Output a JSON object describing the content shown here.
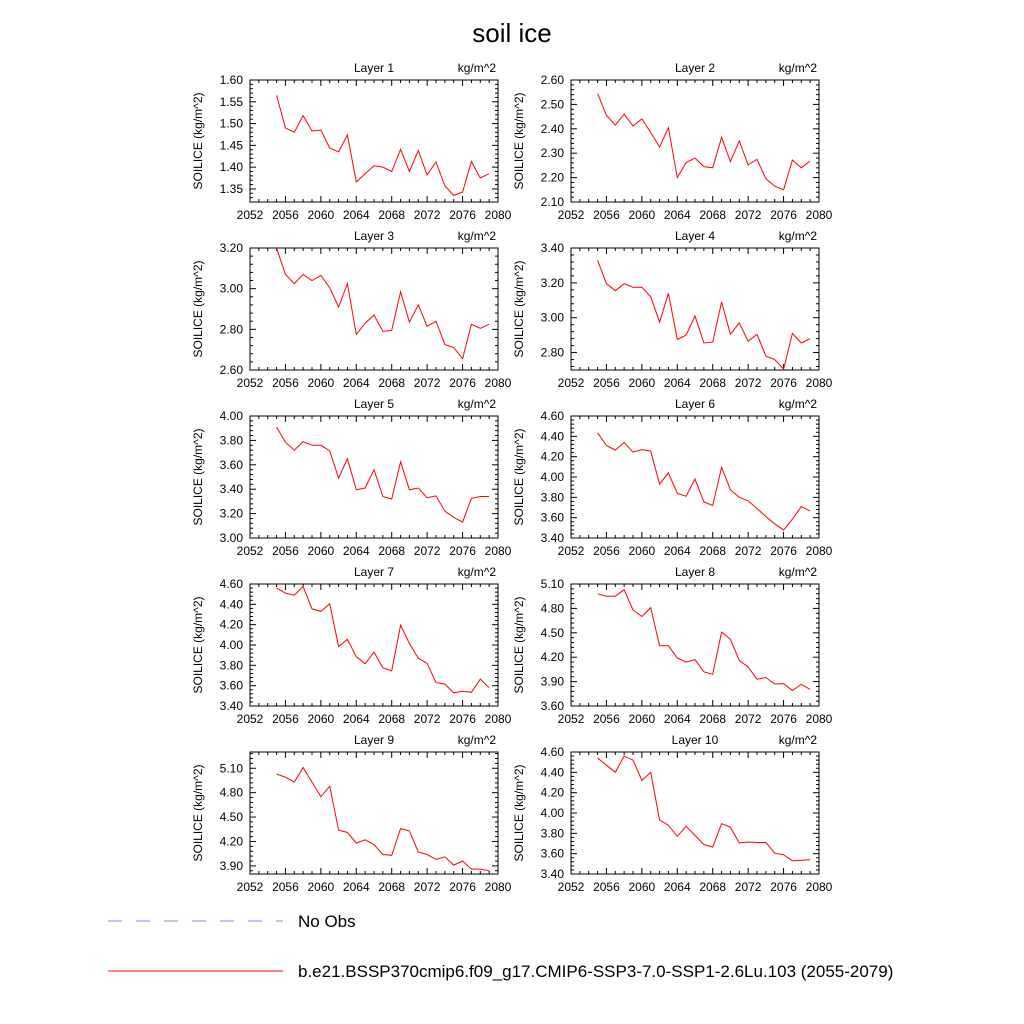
{
  "title": "soil ice",
  "legend": {
    "entries": [
      {
        "label": "No Obs",
        "color": "#8080ff",
        "dash": "dashed"
      },
      {
        "label": "b.e21.BSSP370cmip6.f09_g17.CMIP6-SSP3-7.0-SSP1-2.6Lu.103 (2055-2079)",
        "color": "#ff0000",
        "dash": "solid"
      }
    ]
  },
  "chart_data": [
    {
      "type": "line",
      "left_title": "Layer 1",
      "right_title": "kg/m^2",
      "ylabel": "SOILICE  (kg/m^2)",
      "xlim": [
        2052,
        2080
      ],
      "xticks": [
        2052,
        2056,
        2060,
        2064,
        2068,
        2072,
        2076,
        2080
      ],
      "ylim": [
        1.32,
        1.6
      ],
      "yticks": [
        1.35,
        1.4,
        1.45,
        1.5,
        1.55,
        1.6
      ],
      "ytick_decimals": 2,
      "series": [
        {
          "color": "#ff0000",
          "x": [
            2055,
            2056,
            2057,
            2058,
            2059,
            2060,
            2061,
            2062,
            2063,
            2064,
            2065,
            2066,
            2067,
            2068,
            2069,
            2070,
            2071,
            2072,
            2073,
            2074,
            2075,
            2076,
            2077,
            2078,
            2079
          ],
          "y": [
            1.565,
            1.49,
            1.48,
            1.518,
            1.483,
            1.485,
            1.444,
            1.435,
            1.474,
            1.366,
            1.385,
            1.403,
            1.4,
            1.39,
            1.441,
            1.39,
            1.438,
            1.382,
            1.412,
            1.357,
            1.335,
            1.343,
            1.413,
            1.375,
            1.385
          ]
        }
      ]
    },
    {
      "type": "line",
      "left_title": "Layer 2",
      "right_title": "kg/m^2",
      "ylabel": "SOILICE  (kg/m^2)",
      "xlim": [
        2052,
        2080
      ],
      "xticks": [
        2052,
        2056,
        2060,
        2064,
        2068,
        2072,
        2076,
        2080
      ],
      "ylim": [
        2.1,
        2.6
      ],
      "yticks": [
        2.1,
        2.2,
        2.3,
        2.4,
        2.5,
        2.6
      ],
      "ytick_decimals": 2,
      "series": [
        {
          "color": "#ff0000",
          "x": [
            2055,
            2056,
            2057,
            2058,
            2059,
            2060,
            2061,
            2062,
            2063,
            2064,
            2065,
            2066,
            2067,
            2068,
            2069,
            2070,
            2071,
            2072,
            2073,
            2074,
            2075,
            2076,
            2077,
            2078,
            2079
          ],
          "y": [
            2.545,
            2.455,
            2.415,
            2.46,
            2.412,
            2.44,
            2.385,
            2.325,
            2.405,
            2.2,
            2.262,
            2.28,
            2.245,
            2.24,
            2.365,
            2.265,
            2.35,
            2.252,
            2.275,
            2.195,
            2.165,
            2.15,
            2.272,
            2.24,
            2.268
          ]
        }
      ]
    },
    {
      "type": "line",
      "left_title": "Layer 3",
      "right_title": "kg/m^2",
      "ylabel": "SOILICE  (kg/m^2)",
      "xlim": [
        2052,
        2080
      ],
      "xticks": [
        2052,
        2056,
        2060,
        2064,
        2068,
        2072,
        2076,
        2080
      ],
      "ylim": [
        2.6,
        3.2
      ],
      "yticks": [
        2.6,
        2.8,
        3.0,
        3.2
      ],
      "ytick_decimals": 2,
      "series": [
        {
          "color": "#ff0000",
          "x": [
            2055,
            2056,
            2057,
            2058,
            2059,
            2060,
            2061,
            2062,
            2063,
            2064,
            2065,
            2066,
            2067,
            2068,
            2069,
            2070,
            2071,
            2072,
            2073,
            2074,
            2075,
            2076,
            2077,
            2078,
            2079
          ],
          "y": [
            3.2,
            3.07,
            3.025,
            3.07,
            3.04,
            3.065,
            3.005,
            2.91,
            3.025,
            2.775,
            2.83,
            2.87,
            2.79,
            2.795,
            2.985,
            2.835,
            2.92,
            2.815,
            2.84,
            2.725,
            2.71,
            2.655,
            2.825,
            2.805,
            2.825
          ]
        }
      ]
    },
    {
      "type": "line",
      "left_title": "Layer 4",
      "right_title": "kg/m^2",
      "ylabel": "SOILICE  (kg/m^2)",
      "xlim": [
        2052,
        2080
      ],
      "xticks": [
        2052,
        2056,
        2060,
        2064,
        2068,
        2072,
        2076,
        2080
      ],
      "ylim": [
        2.7,
        3.4
      ],
      "yticks": [
        2.8,
        3.0,
        3.2,
        3.4
      ],
      "ytick_decimals": 2,
      "series": [
        {
          "color": "#ff0000",
          "x": [
            2055,
            2056,
            2057,
            2058,
            2059,
            2060,
            2061,
            2062,
            2063,
            2064,
            2065,
            2066,
            2067,
            2068,
            2069,
            2070,
            2071,
            2072,
            2073,
            2074,
            2075,
            2076,
            2077,
            2078,
            2079
          ],
          "y": [
            3.33,
            3.195,
            3.155,
            3.195,
            3.175,
            3.175,
            3.12,
            2.975,
            3.14,
            2.875,
            2.9,
            3.01,
            2.855,
            2.86,
            3.09,
            2.905,
            2.97,
            2.865,
            2.905,
            2.78,
            2.76,
            2.705,
            2.91,
            2.855,
            2.88
          ]
        }
      ]
    },
    {
      "type": "line",
      "left_title": "Layer 5",
      "right_title": "kg/m^2",
      "ylabel": "SOILICE  (kg/m^2)",
      "xlim": [
        2052,
        2080
      ],
      "xticks": [
        2052,
        2056,
        2060,
        2064,
        2068,
        2072,
        2076,
        2080
      ],
      "ylim": [
        3.0,
        4.0
      ],
      "yticks": [
        3.0,
        3.2,
        3.4,
        3.6,
        3.8,
        4.0
      ],
      "ytick_decimals": 2,
      "series": [
        {
          "color": "#ff0000",
          "x": [
            2055,
            2056,
            2057,
            2058,
            2059,
            2060,
            2061,
            2062,
            2063,
            2064,
            2065,
            2066,
            2067,
            2068,
            2069,
            2070,
            2071,
            2072,
            2073,
            2074,
            2075,
            2076,
            2077,
            2078,
            2079
          ],
          "y": [
            3.91,
            3.785,
            3.72,
            3.79,
            3.76,
            3.76,
            3.715,
            3.49,
            3.65,
            3.395,
            3.41,
            3.56,
            3.34,
            3.32,
            3.625,
            3.395,
            3.41,
            3.33,
            3.345,
            3.22,
            3.17,
            3.13,
            3.325,
            3.34,
            3.34
          ]
        }
      ]
    },
    {
      "type": "line",
      "left_title": "Layer 6",
      "right_title": "kg/m^2",
      "ylabel": "SOILICE  (kg/m^2)",
      "xlim": [
        2052,
        2080
      ],
      "xticks": [
        2052,
        2056,
        2060,
        2064,
        2068,
        2072,
        2076,
        2080
      ],
      "ylim": [
        3.4,
        4.6
      ],
      "yticks": [
        3.4,
        3.6,
        3.8,
        4.0,
        4.2,
        4.4,
        4.6
      ],
      "ytick_decimals": 2,
      "series": [
        {
          "color": "#ff0000",
          "x": [
            2055,
            2056,
            2057,
            2058,
            2059,
            2060,
            2061,
            2062,
            2063,
            2064,
            2065,
            2066,
            2067,
            2068,
            2069,
            2070,
            2071,
            2072,
            2073,
            2074,
            2075,
            2076,
            2077,
            2078,
            2079
          ],
          "y": [
            4.435,
            4.31,
            4.265,
            4.34,
            4.245,
            4.27,
            4.255,
            3.93,
            4.04,
            3.84,
            3.81,
            3.98,
            3.755,
            3.72,
            4.095,
            3.875,
            3.8,
            3.765,
            3.69,
            3.61,
            3.54,
            3.48,
            3.585,
            3.71,
            3.665
          ]
        }
      ]
    },
    {
      "type": "line",
      "left_title": "Layer 7",
      "right_title": "kg/m^2",
      "ylabel": "SOILICE  (kg/m^2)",
      "xlim": [
        2052,
        2080
      ],
      "xticks": [
        2052,
        2056,
        2060,
        2064,
        2068,
        2072,
        2076,
        2080
      ],
      "ylim": [
        3.4,
        4.6
      ],
      "yticks": [
        3.4,
        3.6,
        3.8,
        4.0,
        4.2,
        4.4,
        4.6
      ],
      "ytick_decimals": 2,
      "series": [
        {
          "color": "#ff0000",
          "x": [
            2055,
            2056,
            2057,
            2058,
            2059,
            2060,
            2061,
            2062,
            2063,
            2064,
            2065,
            2066,
            2067,
            2068,
            2069,
            2070,
            2071,
            2072,
            2073,
            2074,
            2075,
            2076,
            2077,
            2078,
            2079
          ],
          "y": [
            4.56,
            4.51,
            4.49,
            4.575,
            4.355,
            4.33,
            4.405,
            3.985,
            4.055,
            3.885,
            3.815,
            3.93,
            3.775,
            3.745,
            4.195,
            4.015,
            3.87,
            3.82,
            3.63,
            3.615,
            3.53,
            3.545,
            3.535,
            3.665,
            3.58
          ]
        }
      ]
    },
    {
      "type": "line",
      "left_title": "Layer 8",
      "right_title": "kg/m^2",
      "ylabel": "SOILICE  (kg/m^2)",
      "xlim": [
        2052,
        2080
      ],
      "xticks": [
        2052,
        2056,
        2060,
        2064,
        2068,
        2072,
        2076,
        2080
      ],
      "ylim": [
        3.6,
        5.1
      ],
      "yticks": [
        3.6,
        3.9,
        4.2,
        4.5,
        4.8,
        5.1
      ],
      "ytick_decimals": 2,
      "series": [
        {
          "color": "#ff0000",
          "x": [
            2055,
            2056,
            2057,
            2058,
            2059,
            2060,
            2061,
            2062,
            2063,
            2064,
            2065,
            2066,
            2067,
            2068,
            2069,
            2070,
            2071,
            2072,
            2073,
            2074,
            2075,
            2076,
            2077,
            2078,
            2079
          ],
          "y": [
            4.98,
            4.95,
            4.95,
            5.03,
            4.78,
            4.7,
            4.81,
            4.34,
            4.34,
            4.19,
            4.14,
            4.17,
            4.02,
            3.99,
            4.51,
            4.42,
            4.16,
            4.08,
            3.93,
            3.95,
            3.87,
            3.875,
            3.79,
            3.865,
            3.805
          ]
        }
      ]
    },
    {
      "type": "line",
      "left_title": "Layer 9",
      "right_title": "kg/m^2",
      "ylabel": "SOILICE  (kg/m^2)",
      "xlim": [
        2052,
        2080
      ],
      "xticks": [
        2052,
        2056,
        2060,
        2064,
        2068,
        2072,
        2076,
        2080
      ],
      "ylim": [
        3.8,
        5.3
      ],
      "yticks": [
        3.9,
        4.2,
        4.5,
        4.8,
        5.1
      ],
      "ytick_decimals": 2,
      "series": [
        {
          "color": "#ff0000",
          "x": [
            2055,
            2056,
            2057,
            2058,
            2059,
            2060,
            2061,
            2062,
            2063,
            2064,
            2065,
            2066,
            2067,
            2068,
            2069,
            2070,
            2071,
            2072,
            2073,
            2074,
            2075,
            2076,
            2077,
            2078,
            2079
          ],
          "y": [
            5.03,
            4.99,
            4.93,
            5.11,
            4.93,
            4.75,
            4.88,
            4.34,
            4.31,
            4.18,
            4.22,
            4.16,
            4.04,
            4.03,
            4.36,
            4.33,
            4.07,
            4.04,
            3.98,
            4.01,
            3.91,
            3.96,
            3.86,
            3.86,
            3.84
          ]
        }
      ]
    },
    {
      "type": "line",
      "left_title": "Layer 10",
      "right_title": "kg/m^2",
      "ylabel": "SOILICE  (kg/m^2)",
      "xlim": [
        2052,
        2080
      ],
      "xticks": [
        2052,
        2056,
        2060,
        2064,
        2068,
        2072,
        2076,
        2080
      ],
      "ylim": [
        3.4,
        4.6
      ],
      "yticks": [
        3.4,
        3.6,
        3.8,
        4.0,
        4.2,
        4.4,
        4.6
      ],
      "ytick_decimals": 2,
      "series": [
        {
          "color": "#ff0000",
          "x": [
            2055,
            2056,
            2057,
            2058,
            2059,
            2060,
            2061,
            2062,
            2063,
            2064,
            2065,
            2066,
            2067,
            2068,
            2069,
            2070,
            2071,
            2072,
            2073,
            2074,
            2075,
            2076,
            2077,
            2078,
            2079
          ],
          "y": [
            4.54,
            4.47,
            4.4,
            4.56,
            4.52,
            4.32,
            4.4,
            3.93,
            3.88,
            3.77,
            3.87,
            3.78,
            3.69,
            3.665,
            3.895,
            3.86,
            3.705,
            3.715,
            3.71,
            3.71,
            3.605,
            3.59,
            3.53,
            3.535,
            3.54
          ]
        }
      ]
    }
  ]
}
